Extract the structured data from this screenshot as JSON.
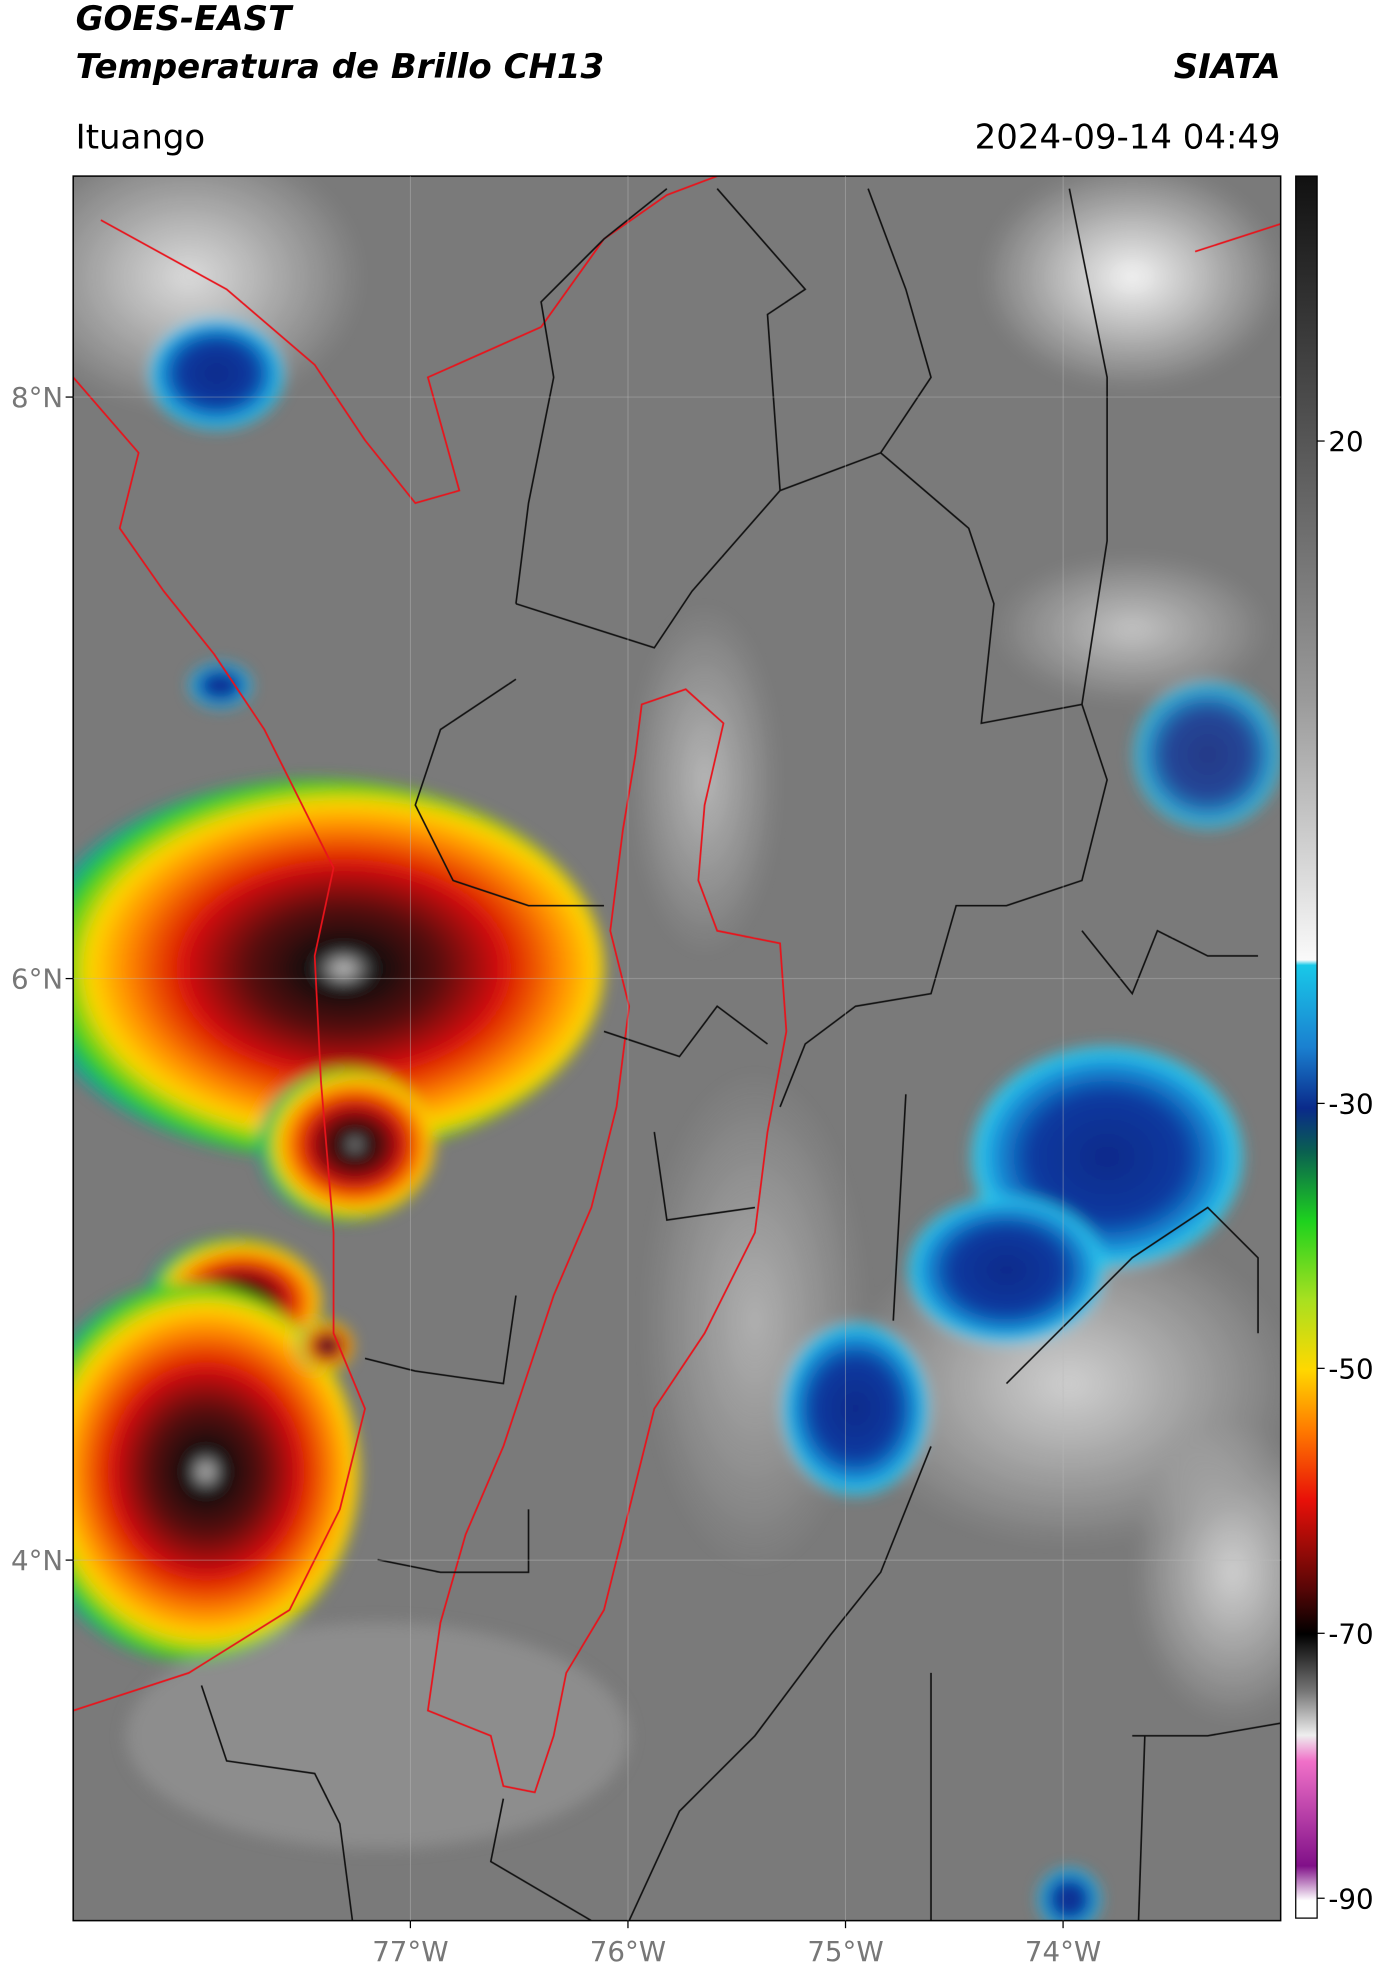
{
  "header": {
    "title": "GOES-EAST",
    "subtitle": "Temperatura de Brillo CH13",
    "brand": "SIATA",
    "location": "Ituango",
    "datetime": "2024-09-14 04:49"
  },
  "map": {
    "xlim": [
      -78.55,
      -73.0
    ],
    "ylim": [
      2.76,
      8.76
    ],
    "xticks": [
      {
        "value": -77,
        "label": "77°W"
      },
      {
        "value": -76,
        "label": "76°W"
      },
      {
        "value": -75,
        "label": "75°W"
      },
      {
        "value": -74,
        "label": "74°W"
      }
    ],
    "yticks": [
      {
        "value": 8,
        "label": "8°N"
      },
      {
        "value": 6,
        "label": "6°N"
      },
      {
        "value": 4,
        "label": "4°N"
      }
    ]
  },
  "colorbar": {
    "range": [
      -91.5,
      40
    ],
    "ticks": [
      20,
      -30,
      -50,
      -70,
      -90
    ]
  }
}
